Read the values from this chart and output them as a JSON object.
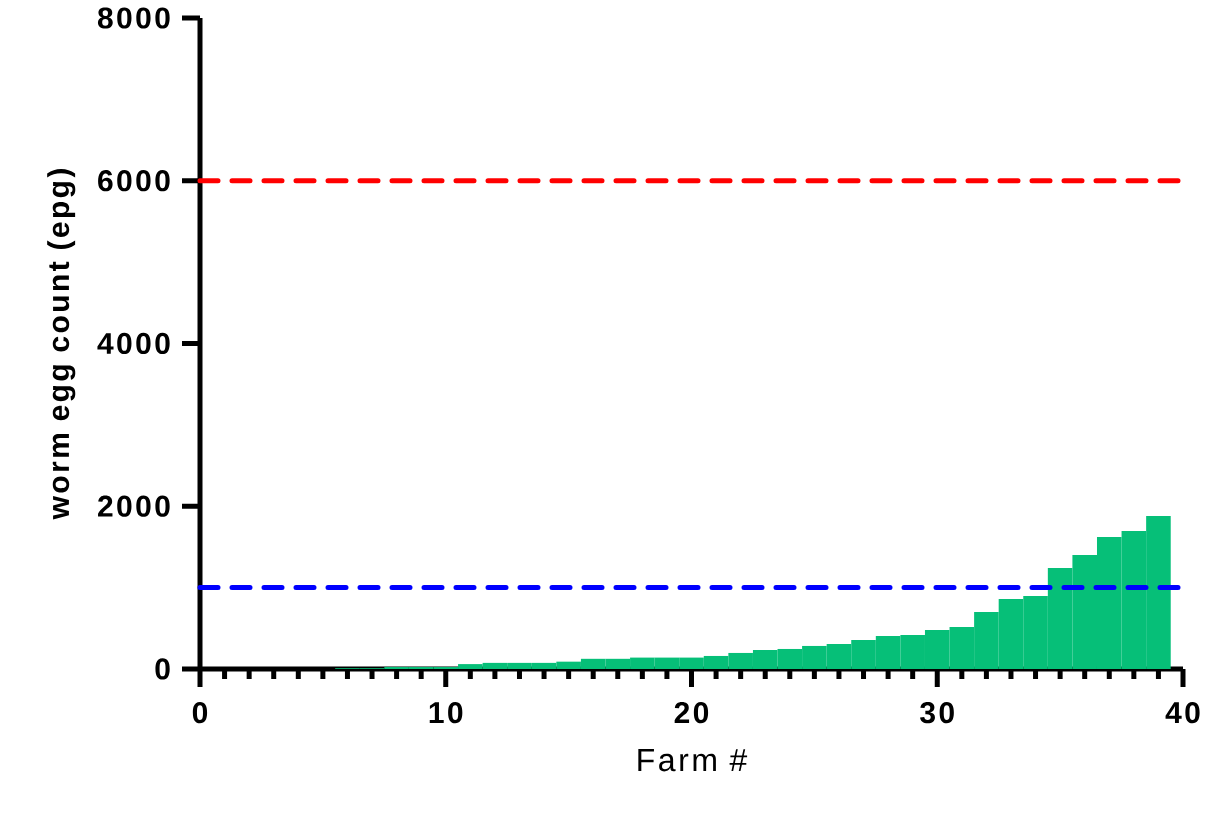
{
  "chart_data": {
    "type": "bar",
    "xlabel": "Farm #",
    "ylabel": "worm egg count (epg)",
    "color": "#06bf78",
    "x": [
      1,
      2,
      3,
      4,
      5,
      6,
      7,
      8,
      9,
      10,
      11,
      12,
      13,
      14,
      15,
      16,
      17,
      18,
      19,
      20,
      21,
      22,
      23,
      24,
      25,
      26,
      27,
      28,
      29,
      30,
      31,
      32,
      33,
      34,
      35,
      36,
      37,
      38,
      39
    ],
    "values": [
      0,
      0,
      0,
      0,
      0,
      10,
      10,
      25,
      25,
      25,
      60,
      75,
      75,
      75,
      90,
      125,
      125,
      140,
      140,
      140,
      160,
      197,
      233,
      246,
      283,
      307,
      356,
      405,
      418,
      479,
      516,
      700,
      860,
      897,
      1241,
      1400,
      1622,
      1695,
      1880
    ],
    "xlim": [
      0,
      40
    ],
    "ylim": [
      0,
      8000
    ],
    "xticks": [
      0,
      10,
      20,
      30,
      40
    ],
    "yticks": [
      0,
      2000,
      4000,
      6000,
      8000
    ],
    "ref_lines": [
      {
        "axis": "y",
        "value": 6000,
        "color": "#ff0000",
        "line_style": "dashed"
      },
      {
        "axis": "y",
        "value": 1000,
        "color": "#0000ff",
        "line_style": "dashed"
      }
    ]
  }
}
